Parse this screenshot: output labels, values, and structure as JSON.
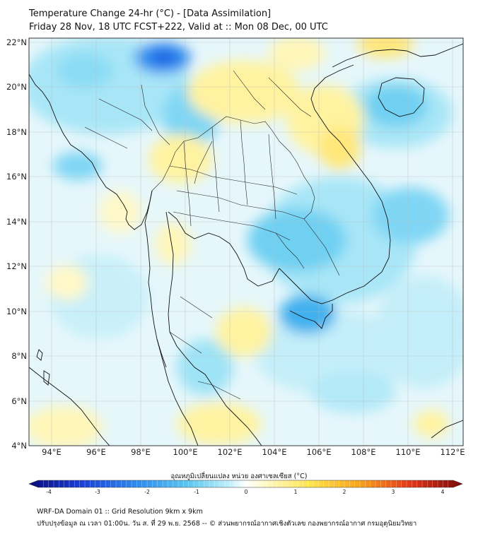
{
  "title": {
    "line1": "Temperature Change 24-hr (°C) - [Data Assimilation]",
    "line2": "Friday 28 Nov, 18 UTC FCST+222, Valid at :: Mon 08 Dec, 00 UTC"
  },
  "map": {
    "lat_labels": [
      "22°N",
      "20°N",
      "18°N",
      "16°N",
      "14°N",
      "12°N",
      "10°N",
      "8°N",
      "6°N",
      "4°N"
    ],
    "lon_labels": [
      "94°E",
      "96°E",
      "98°E",
      "100°E",
      "102°E",
      "104°E",
      "106°E",
      "108°E",
      "110°E",
      "112°E"
    ],
    "extent": {
      "lon": [
        93,
        112.5
      ],
      "lat": [
        4,
        22.2
      ]
    },
    "region": "Thailand and Southeast Asia",
    "field": "24-hr temperature change"
  },
  "colorbar": {
    "title": "อุณหภูมิเปลี่ยนแปลง หน่วย องศาเซลเซียส (°C)",
    "ticks": [
      "-4",
      "-3",
      "-2",
      "-1",
      "0",
      "1",
      "2",
      "3",
      "4"
    ],
    "range": [
      -4,
      4
    ],
    "colors": [
      "#0a0a7a",
      "#1a3fd6",
      "#2f8cf0",
      "#5cc8f0",
      "#bdeefc",
      "#ffffff",
      "#fff8c0",
      "#ffe44a",
      "#f9a51b",
      "#e4361a",
      "#7a0a0a"
    ]
  },
  "footer": {
    "line1": "WRF-DA Domain 01 :: Grid Resolution 9km x 9km",
    "line2": "ปรับปรุงข้อมูล ณ เวลา 01:00น. วัน ส. ที่ 29 พ.ย. 2568 -- © ส่วนพยากรณ์อากาศเชิงตัวเลข กองพยากรณ์อากาศ กรมอุตุนิยมวิทยา"
  }
}
